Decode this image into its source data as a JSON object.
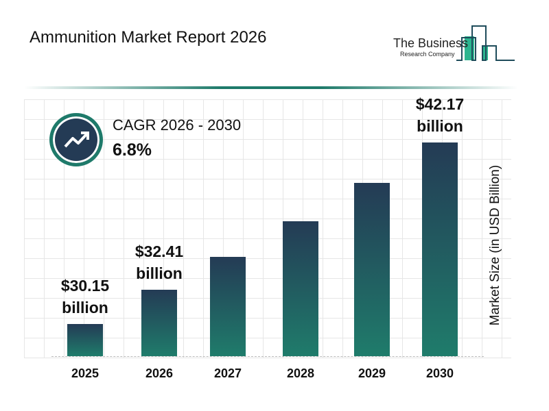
{
  "header": {
    "title": "Ammunition Market Report 2026"
  },
  "logo": {
    "line1": "The Business",
    "line2": "Research Company"
  },
  "cagr": {
    "label": "CAGR 2026 - 2030",
    "value": "6.8%",
    "icon": "trend-up-arrow-icon"
  },
  "colors": {
    "bar_top": "#243b55",
    "bar_bottom": "#1f7c6b",
    "accent": "#1e7a6a"
  },
  "chart_data": {
    "type": "bar",
    "title": "Ammunition Market Report 2026",
    "ylabel": "Market Size (in USD Billion)",
    "xlabel": "",
    "categories": [
      "2025",
      "2026",
      "2027",
      "2028",
      "2029",
      "2030"
    ],
    "values": [
      30.15,
      32.41,
      34.61,
      36.97,
      39.48,
      42.17
    ],
    "data_labels": [
      {
        "index": 0,
        "value": "$30.15",
        "unit": "billion"
      },
      {
        "index": 1,
        "value": "$32.41",
        "unit": "billion"
      },
      {
        "index": 5,
        "value": "$42.17",
        "unit": "billion"
      }
    ],
    "ylim": [
      28,
      43
    ],
    "grid": true,
    "legend": "none"
  }
}
